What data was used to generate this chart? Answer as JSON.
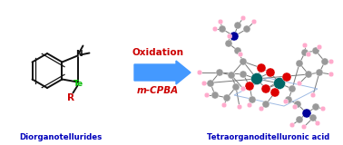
{
  "bg_color": "#ffffff",
  "arrow_color": "#4499ff",
  "oxidation_text": "Oxidation",
  "oxidation_color": "#cc0000",
  "reagent_text": "m-CPBA",
  "reagent_color": "#cc0000",
  "label_left": "Diorganotellurides",
  "label_right": "Tetraorganoditelluronic acid",
  "label_color": "#0000bb",
  "te_color": "#00bb00",
  "r_color": "#cc0000",
  "bond_color": "#111111",
  "c_color": "#888888",
  "o_color": "#cc0000",
  "n_color": "#0000cc",
  "h_color": "#ffaacc",
  "te_crystal_color": "#007777",
  "bond_gray": "#777777"
}
